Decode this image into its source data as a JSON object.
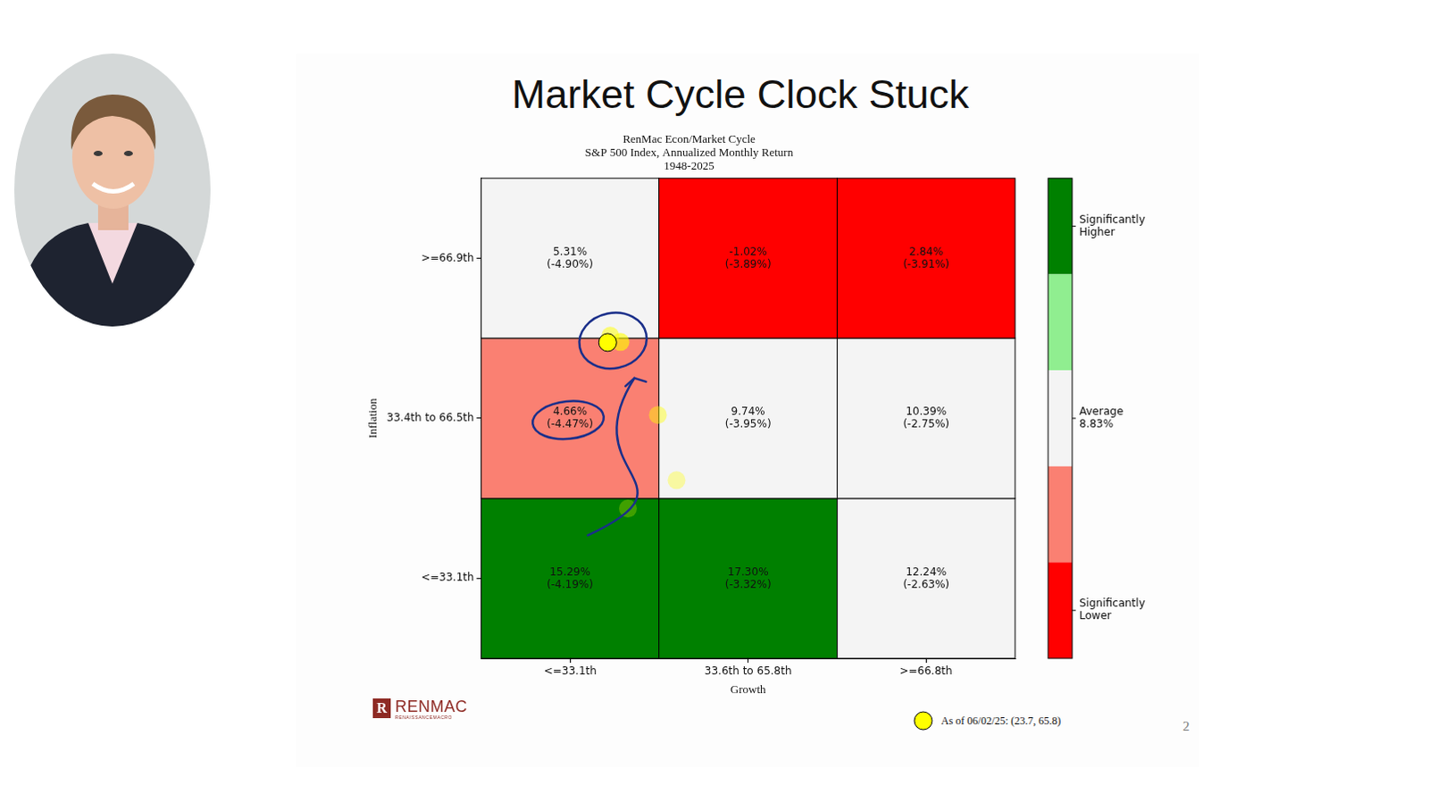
{
  "slide": {
    "title": "Market Cycle Clock Stuck",
    "logo": {
      "text": "RENMAC",
      "subtext": "RENAISSANCEMACRO"
    },
    "page_number": 2
  },
  "chart_data": {
    "type": "heatmap",
    "title": "RenMac Econ/Market Cycle",
    "subtitle": [
      "S&P 500 Index, Annualized Monthly Return",
      "1948-2025"
    ],
    "x_label": "Growth",
    "y_label": "Inflation",
    "xlim": [
      0,
      100
    ],
    "ylim": [
      0,
      100
    ],
    "xticks": [
      {
        "value": 16.7,
        "label": "<=33.1th"
      },
      {
        "value": 50,
        "label": "33.6th to 65.8th"
      },
      {
        "value": 83.3,
        "label": ">=66.8th"
      }
    ],
    "yticks": [
      {
        "value": 16.7,
        "label": "<=33.1th"
      },
      {
        "value": 50,
        "label": "33.4th to 66.5th"
      },
      {
        "value": 83.3,
        "label": ">=66.9th"
      }
    ],
    "x_edges": [
      0,
      33.3,
      66.7,
      100
    ],
    "y_edges": [
      0,
      33.3,
      66.7,
      100
    ],
    "grid": false,
    "rows": [
      {
        "values": [
          15.29,
          17.3,
          12.24
        ],
        "value_labels": [
          "15.29%",
          "17.30%",
          "12.24%"
        ],
        "secondary_values": [
          -4.19,
          -3.32,
          -2.63
        ],
        "secondary_labels": [
          "(-4.19%)",
          "(-3.32%)",
          "(-2.63%)"
        ],
        "colors": [
          "#008000",
          "#008000",
          "#f4f4f4"
        ]
      },
      {
        "values": [
          4.66,
          9.74,
          10.39
        ],
        "value_labels": [
          "4.66%",
          "9.74%",
          "10.39%"
        ],
        "secondary_values": [
          -4.47,
          -3.95,
          -2.75
        ],
        "secondary_labels": [
          "(-4.47%)",
          "(-3.95%)",
          "(-2.75%)"
        ],
        "colors": [
          "#fa8072",
          "#f4f4f4",
          "#f4f4f4"
        ]
      },
      {
        "values": [
          5.31,
          -1.02,
          2.84
        ],
        "value_labels": [
          "5.31%",
          "-1.02%",
          "2.84%"
        ],
        "secondary_values": [
          -4.9,
          -3.89,
          -3.91
        ],
        "secondary_labels": [
          "(-4.90%)",
          "(-3.89%)",
          "(-3.91%)"
        ],
        "colors": [
          "#f4f4f4",
          "#ff0000",
          "#ff0000"
        ]
      }
    ],
    "colorbar": {
      "colors": [
        "#008000",
        "#90ee90",
        "#f4f4f4",
        "#fa8072",
        "#ff0000"
      ],
      "labels": [
        "Significantly Higher",
        null,
        "Average 8.83%",
        null,
        "Significantly Lower"
      ]
    },
    "series": [
      {
        "name": "As of 06/02/25: (23.7, 65.8)",
        "color": "#ffff00",
        "marker": "circle",
        "x": [
          27.5,
          36.6,
          33.1,
          24.2,
          26.1,
          23.7
        ],
        "y": [
          31.2,
          37.1,
          50.7,
          67.2,
          65.9,
          65.8
        ]
      }
    ],
    "legend": "bottom-right"
  }
}
